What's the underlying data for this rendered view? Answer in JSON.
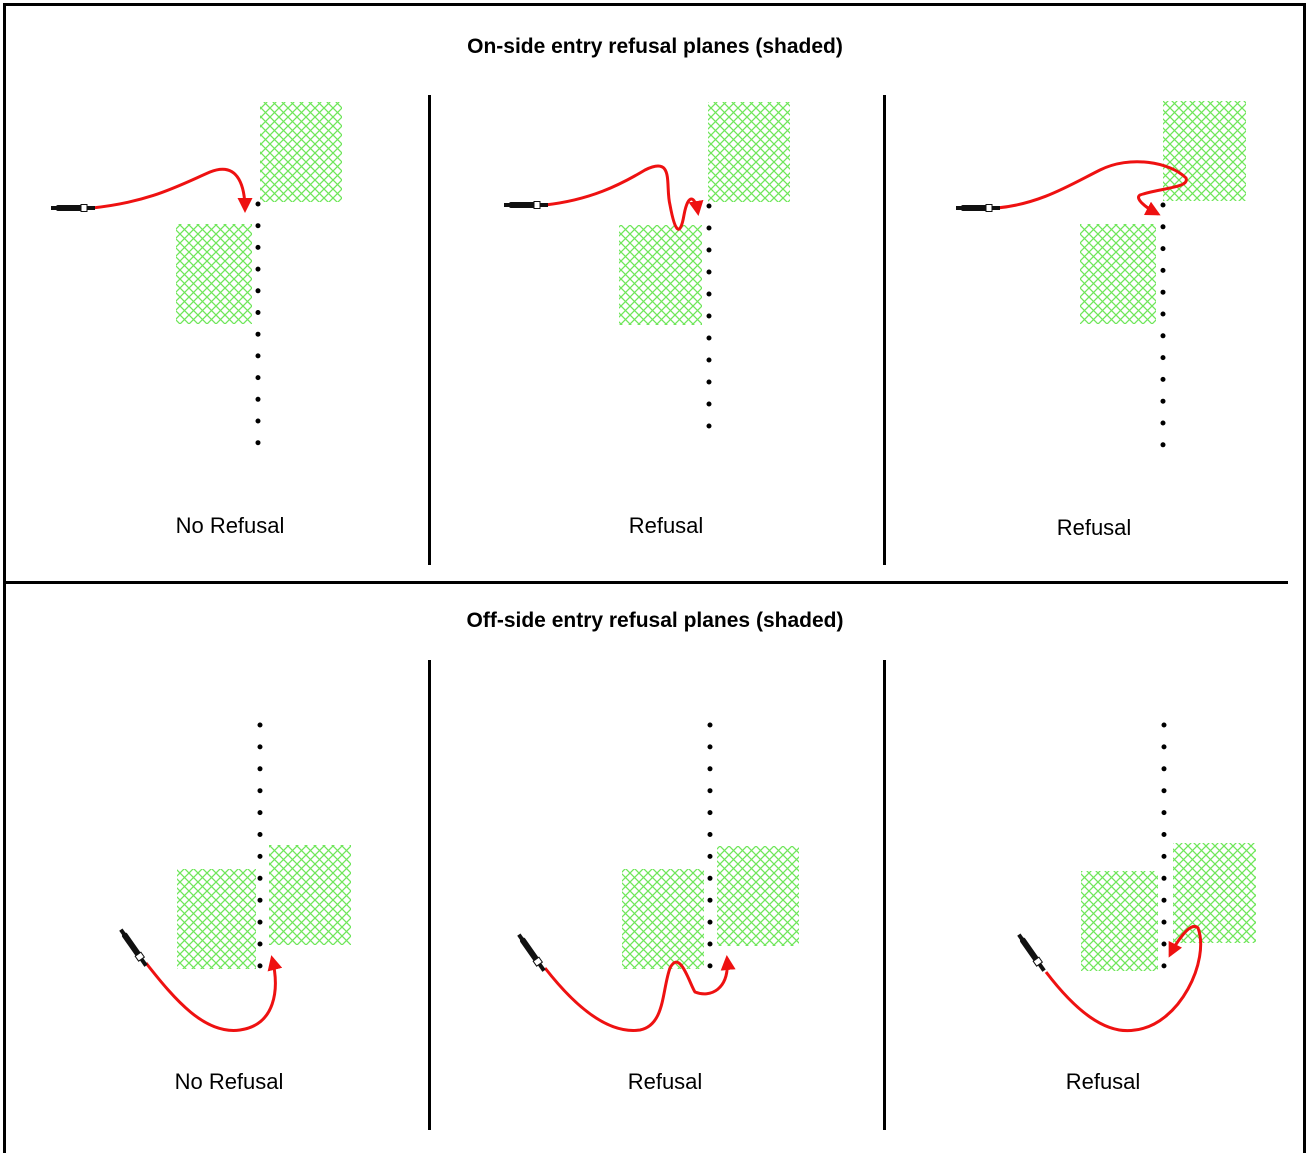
{
  "top_section": {
    "title": "On-side entry refusal planes (shaded)",
    "panels": [
      {
        "caption": "No Refusal"
      },
      {
        "caption": "Refusal"
      },
      {
        "caption": "Refusal"
      }
    ]
  },
  "bottom_section": {
    "title": "Off-side entry refusal planes (shaded)",
    "panels": [
      {
        "caption": "No Refusal"
      },
      {
        "caption": "Refusal"
      },
      {
        "caption": "Refusal"
      }
    ]
  },
  "colors": {
    "hatch": "#6fe65a",
    "path": "#ee1111",
    "line": "#000000"
  },
  "icons": {
    "probe": "probe-icon",
    "refusal_plane": "hatched-refusal-plane",
    "path": "red-path-arrow"
  }
}
